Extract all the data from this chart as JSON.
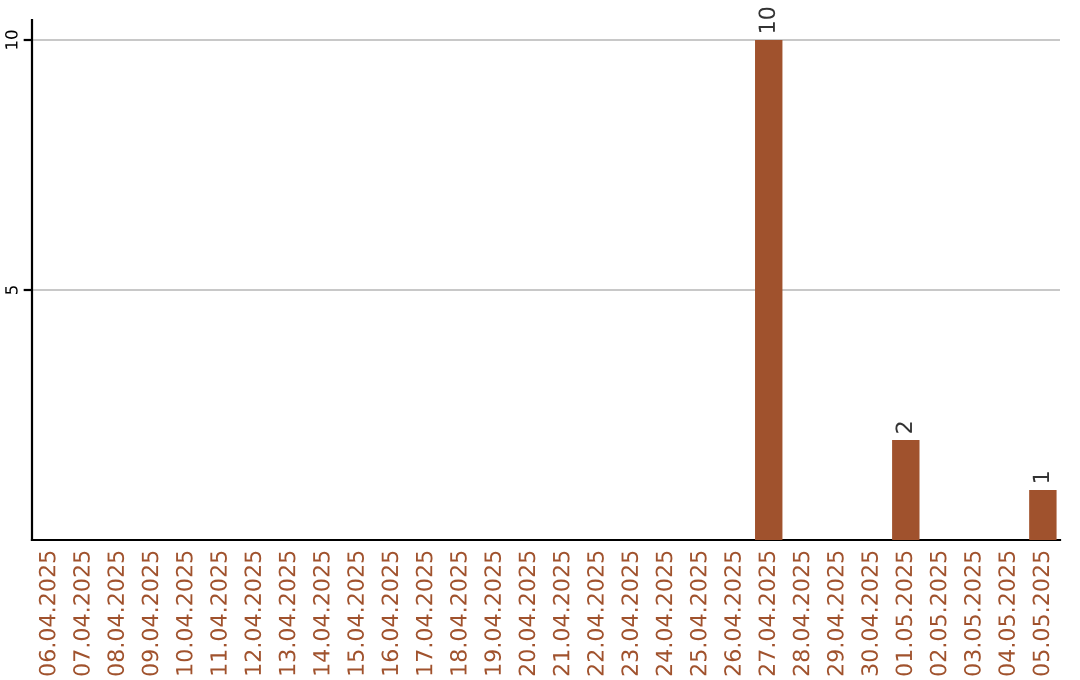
{
  "chart_data": {
    "type": "bar",
    "categories": [
      "06.04.2025",
      "07.04.2025",
      "08.04.2025",
      "09.04.2025",
      "10.04.2025",
      "11.04.2025",
      "12.04.2025",
      "13.04.2025",
      "14.04.2025",
      "15.04.2025",
      "16.04.2025",
      "17.04.2025",
      "18.04.2025",
      "19.04.2025",
      "20.04.2025",
      "21.04.2025",
      "22.04.2025",
      "23.04.2025",
      "24.04.2025",
      "25.04.2025",
      "26.04.2025",
      "27.04.2025",
      "28.04.2025",
      "29.04.2025",
      "30.04.2025",
      "01.05.2025",
      "02.05.2025",
      "03.05.2025",
      "04.05.2025",
      "05.05.2025"
    ],
    "values": [
      0,
      0,
      0,
      0,
      0,
      0,
      0,
      0,
      0,
      0,
      0,
      0,
      0,
      0,
      0,
      0,
      0,
      0,
      0,
      0,
      0,
      10,
      0,
      0,
      0,
      2,
      0,
      0,
      0,
      1
    ],
    "value_labels": [
      null,
      null,
      null,
      null,
      null,
      null,
      null,
      null,
      null,
      null,
      null,
      null,
      null,
      null,
      null,
      null,
      null,
      null,
      null,
      null,
      null,
      "10",
      null,
      null,
      null,
      "2",
      null,
      null,
      null,
      "1"
    ],
    "color": "#a0522d",
    "ylim": [
      0,
      10.4
    ],
    "yticks": [
      5,
      10
    ],
    "grid": "y"
  }
}
